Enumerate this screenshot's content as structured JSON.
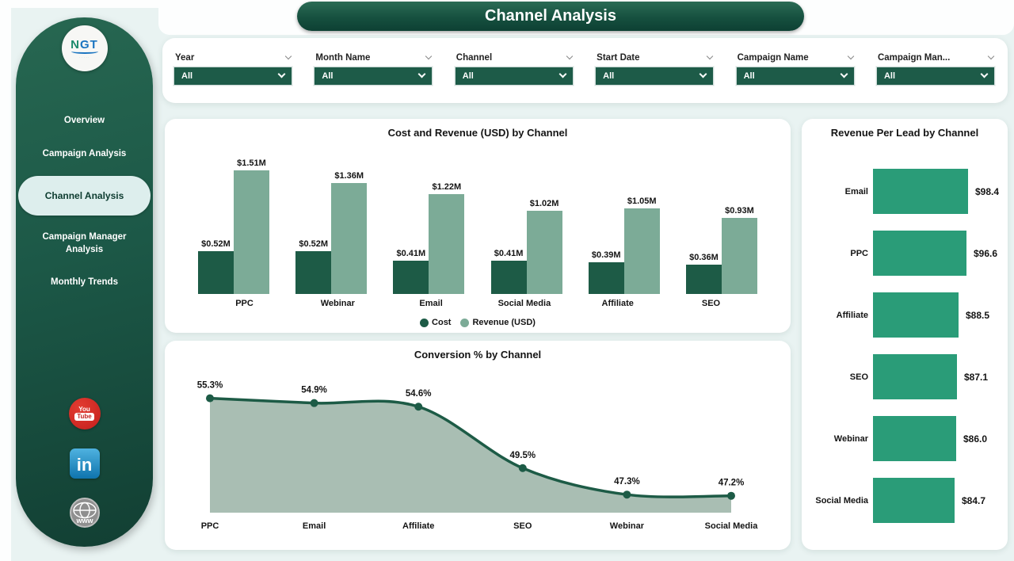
{
  "page": {
    "title": "Channel Analysis"
  },
  "sidebar": {
    "logo": {
      "text_n": "N",
      "text_gt": "GT",
      "icon": "ngt-logo"
    },
    "items": [
      {
        "label": "Overview",
        "active": false
      },
      {
        "label": "Campaign Analysis",
        "active": false
      },
      {
        "label": "Channel Analysis",
        "active": true
      },
      {
        "label": "Campaign Manager Analysis",
        "active": false
      },
      {
        "label": "Monthly Trends",
        "active": false
      }
    ],
    "social": [
      {
        "name": "youtube",
        "you": "You",
        "tube": "Tube"
      },
      {
        "name": "linkedin",
        "text": "in"
      },
      {
        "name": "website",
        "text": "www"
      }
    ]
  },
  "filters": [
    {
      "label": "Year",
      "value": "All"
    },
    {
      "label": "Month Name",
      "value": "All"
    },
    {
      "label": "Channel",
      "value": "All"
    },
    {
      "label": "Start Date",
      "value": "All"
    },
    {
      "label": "Campaign Name",
      "value": "All"
    },
    {
      "label": "Campaign Man...",
      "value": "All"
    }
  ],
  "theme": {
    "dark_green": "#1d5b46",
    "light_green": "#7cab97",
    "teal": "#2a9c78",
    "area_fill": "#a9beb3",
    "background": "#e9f3f2"
  },
  "chart_data": [
    {
      "type": "bar",
      "title": "Cost and Revenue (USD) by Channel",
      "categories": [
        "PPC",
        "Webinar",
        "Email",
        "Social Media",
        "Affiliate",
        "SEO"
      ],
      "series": [
        {
          "name": "Cost",
          "color": "#1d5b46",
          "values": [
            0.52,
            0.52,
            0.41,
            0.41,
            0.39,
            0.36
          ],
          "labels": [
            "$0.52M",
            "$0.52M",
            "$0.41M",
            "$0.41M",
            "$0.39M",
            "$0.36M"
          ]
        },
        {
          "name": "Revenue (USD)",
          "color": "#7cab97",
          "values": [
            1.51,
            1.36,
            1.22,
            1.02,
            1.05,
            0.93
          ],
          "labels": [
            "$1.51M",
            "$1.36M",
            "$1.22M",
            "$1.02M",
            "$1.05M",
            "$0.93M"
          ]
        }
      ],
      "ylim": [
        0,
        1.6
      ],
      "legend_position": "bottom",
      "grid": false
    },
    {
      "type": "area",
      "title": "Conversion % by Channel",
      "categories": [
        "PPC",
        "Email",
        "Affiliate",
        "SEO",
        "Webinar",
        "Social Media"
      ],
      "values": [
        55.3,
        54.9,
        54.6,
        49.5,
        47.3,
        47.2
      ],
      "labels": [
        "55.3%",
        "54.9%",
        "54.6%",
        "49.5%",
        "47.3%",
        "47.2%"
      ],
      "ylim": [
        45.8,
        57
      ],
      "line_color": "#1d5b46",
      "fill_color": "#a9beb3",
      "grid": false
    },
    {
      "type": "bar",
      "orientation": "horizontal",
      "title": "Revenue Per Lead by Channel",
      "categories": [
        "Email",
        "PPC",
        "Affiliate",
        "SEO",
        "Webinar",
        "Social Media"
      ],
      "values": [
        98.4,
        96.6,
        88.5,
        87.1,
        86.0,
        84.7
      ],
      "labels": [
        "$98.4",
        "$96.6",
        "$88.5",
        "$87.1",
        "$86.0",
        "$84.7"
      ],
      "bar_color": "#2a9c78",
      "xlim": [
        0,
        100
      ],
      "grid": false
    }
  ]
}
